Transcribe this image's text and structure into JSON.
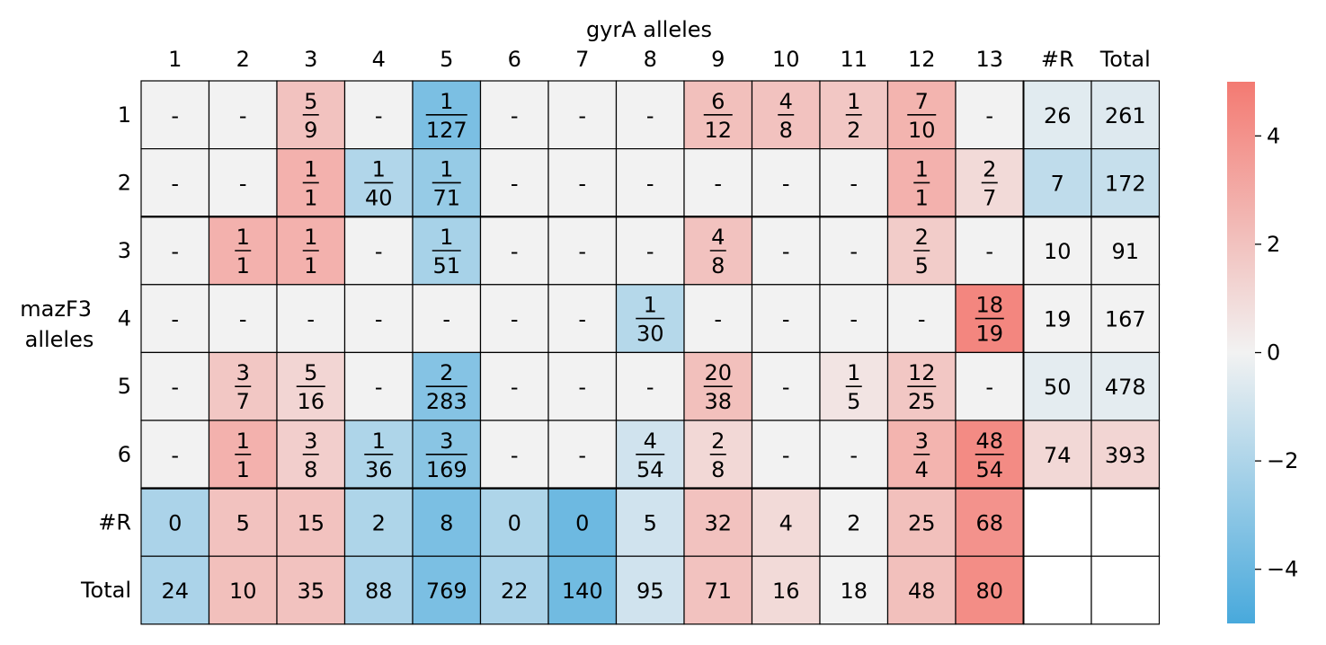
{
  "chart_data": {
    "type": "heatmap",
    "xlabel": "gyrA alleles",
    "ylabel": [
      "mazF3",
      "alleles"
    ],
    "col_labels": [
      "1",
      "2",
      "3",
      "4",
      "5",
      "6",
      "7",
      "8",
      "9",
      "10",
      "11",
      "12",
      "13",
      "#R",
      "Total"
    ],
    "row_labels": [
      "1",
      "2",
      "3",
      "4",
      "5",
      "6",
      "#R",
      "Total"
    ],
    "colorbar": {
      "ticks": [
        4,
        2,
        0,
        -2,
        -4
      ],
      "tick_labels": [
        "4",
        "2",
        "0",
        "−2",
        "−4"
      ],
      "min": -5,
      "max": 5,
      "low_color": "#48a9dc",
      "mid_color": "#f2f2f2",
      "high_color": "#f37a72"
    },
    "cells": [
      [
        {
          "t": "-",
          "v": 0
        },
        {
          "t": "-",
          "v": 0
        },
        {
          "n": "5",
          "d": "9",
          "v": 2.0
        },
        {
          "t": "-",
          "v": 0
        },
        {
          "n": "1",
          "d": "127",
          "v": -3.5
        },
        {
          "t": "-",
          "v": 0
        },
        {
          "t": "-",
          "v": 0
        },
        {
          "t": "-",
          "v": 0
        },
        {
          "n": "6",
          "d": "12",
          "v": 2.1
        },
        {
          "n": "4",
          "d": "8",
          "v": 2.0
        },
        {
          "n": "1",
          "d": "2",
          "v": 1.8
        },
        {
          "n": "7",
          "d": "10",
          "v": 2.6
        },
        {
          "t": "-",
          "v": 0
        },
        {
          "t": "26",
          "v": -0.5
        },
        {
          "t": "261",
          "v": -0.6
        }
      ],
      [
        {
          "t": "-",
          "v": 0
        },
        {
          "t": "-",
          "v": 0
        },
        {
          "n": "1",
          "d": "1",
          "v": 2.7
        },
        {
          "n": "1",
          "d": "40",
          "v": -1.9
        },
        {
          "n": "1",
          "d": "71",
          "v": -2.7
        },
        {
          "t": "-",
          "v": 0
        },
        {
          "t": "-",
          "v": 0
        },
        {
          "t": "-",
          "v": 0
        },
        {
          "t": "-",
          "v": 0
        },
        {
          "t": "-",
          "v": 0
        },
        {
          "t": "-",
          "v": 0
        },
        {
          "n": "1",
          "d": "1",
          "v": 2.7
        },
        {
          "n": "2",
          "d": "7",
          "v": 1.0
        },
        {
          "t": "7",
          "v": -1.5
        },
        {
          "t": "172",
          "v": -1.3
        }
      ],
      [
        {
          "t": "-",
          "v": 0
        },
        {
          "n": "1",
          "d": "1",
          "v": 2.7
        },
        {
          "n": "1",
          "d": "1",
          "v": 2.7
        },
        {
          "t": "-",
          "v": 0
        },
        {
          "n": "1",
          "d": "51",
          "v": -2.2
        },
        {
          "t": "-",
          "v": 0
        },
        {
          "t": "-",
          "v": 0
        },
        {
          "t": "-",
          "v": 0
        },
        {
          "n": "4",
          "d": "8",
          "v": 2.0
        },
        {
          "t": "-",
          "v": 0
        },
        {
          "t": "-",
          "v": 0
        },
        {
          "n": "2",
          "d": "5",
          "v": 1.6
        },
        {
          "t": "-",
          "v": 0
        },
        {
          "t": "10",
          "v": 0
        },
        {
          "t": "91",
          "v": 0
        }
      ],
      [
        {
          "t": "-",
          "v": 0
        },
        {
          "t": "-",
          "v": 0
        },
        {
          "t": "-",
          "v": 0
        },
        {
          "t": "-",
          "v": 0
        },
        {
          "t": "-",
          "v": 0
        },
        {
          "t": "-",
          "v": 0
        },
        {
          "t": "-",
          "v": 0
        },
        {
          "n": "1",
          "d": "30",
          "v": -1.8
        },
        {
          "t": "-",
          "v": 0
        },
        {
          "t": "-",
          "v": 0
        },
        {
          "t": "-",
          "v": 0
        },
        {
          "t": "-",
          "v": 0
        },
        {
          "n": "18",
          "d": "19",
          "v": 4.5
        },
        {
          "t": "19",
          "v": 0
        },
        {
          "t": "167",
          "v": 0
        }
      ],
      [
        {
          "t": "-",
          "v": 0
        },
        {
          "n": "3",
          "d": "7",
          "v": 1.8
        },
        {
          "n": "5",
          "d": "16",
          "v": 1.2
        },
        {
          "t": "-",
          "v": 0
        },
        {
          "n": "2",
          "d": "283",
          "v": -3.2
        },
        {
          "t": "-",
          "v": 0
        },
        {
          "t": "-",
          "v": 0
        },
        {
          "t": "-",
          "v": 0
        },
        {
          "n": "20",
          "d": "38",
          "v": 2.1
        },
        {
          "t": "-",
          "v": 0
        },
        {
          "n": "1",
          "d": "5",
          "v": 0.6
        },
        {
          "n": "12",
          "d": "25",
          "v": 1.8
        },
        {
          "t": "-",
          "v": 0
        },
        {
          "t": "50",
          "v": -0.4
        },
        {
          "t": "478",
          "v": -0.4
        }
      ],
      [
        {
          "t": "-",
          "v": 0
        },
        {
          "n": "1",
          "d": "1",
          "v": 2.7
        },
        {
          "n": "3",
          "d": "8",
          "v": 1.5
        },
        {
          "n": "1",
          "d": "36",
          "v": -2.0
        },
        {
          "n": "3",
          "d": "169",
          "v": -3.1
        },
        {
          "t": "-",
          "v": 0
        },
        {
          "t": "-",
          "v": 0
        },
        {
          "n": "4",
          "d": "54",
          "v": -1.0
        },
        {
          "n": "2",
          "d": "8",
          "v": 1.1
        },
        {
          "t": "-",
          "v": 0
        },
        {
          "t": "-",
          "v": 0
        },
        {
          "n": "3",
          "d": "4",
          "v": 2.6
        },
        {
          "n": "48",
          "d": "54",
          "v": 4.3
        },
        {
          "t": "74",
          "v": 1.1
        },
        {
          "t": "393",
          "v": 1.2
        }
      ],
      [
        {
          "t": "0",
          "v": -2.1
        },
        {
          "t": "5",
          "v": 2.0
        },
        {
          "t": "15",
          "v": 2.0
        },
        {
          "t": "2",
          "v": -2.0
        },
        {
          "t": "8",
          "v": -3.5
        },
        {
          "t": "0",
          "v": -2.0
        },
        {
          "t": "0",
          "v": -3.9
        },
        {
          "t": "5",
          "v": -1.0
        },
        {
          "t": "32",
          "v": 2.0
        },
        {
          "t": "4",
          "v": 1.0
        },
        {
          "t": "2",
          "v": 0
        },
        {
          "t": "25",
          "v": 2.1
        },
        {
          "t": "68",
          "v": 4.0
        },
        {
          "t": "",
          "v": null
        },
        {
          "t": "",
          "v": null
        }
      ],
      [
        {
          "t": "24",
          "v": -2.1
        },
        {
          "t": "10",
          "v": 2.1
        },
        {
          "t": "35",
          "v": 2.0
        },
        {
          "t": "88",
          "v": -2.1
        },
        {
          "t": "769",
          "v": -3.5
        },
        {
          "t": "22",
          "v": -2.1
        },
        {
          "t": "140",
          "v": -3.8
        },
        {
          "t": "95",
          "v": -1.0
        },
        {
          "t": "71",
          "v": 2.0
        },
        {
          "t": "16",
          "v": 1.0
        },
        {
          "t": "18",
          "v": 0
        },
        {
          "t": "48",
          "v": 2.1
        },
        {
          "t": "80",
          "v": 4.2
        },
        {
          "t": "",
          "v": null
        },
        {
          "t": "",
          "v": null
        }
      ]
    ]
  }
}
